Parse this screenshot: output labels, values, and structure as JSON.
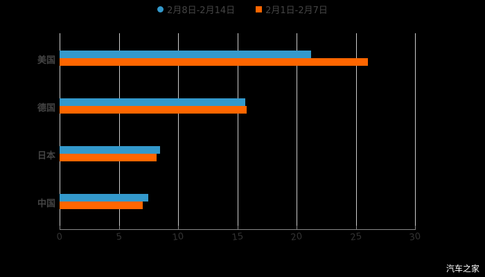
{
  "chart_data": {
    "type": "bar",
    "orientation": "horizontal",
    "title": "",
    "categories": [
      "美国",
      "德国",
      "日本",
      "中国"
    ],
    "series": [
      {
        "name": "2月8日-2月14日",
        "color": "#3399CC",
        "marker": "circle",
        "values": [
          21.2,
          15.7,
          8.5,
          7.5
        ]
      },
      {
        "name": "2月1日-2月7日",
        "color": "#FF6600",
        "marker": "square",
        "values": [
          26.0,
          15.8,
          8.2,
          7.0
        ]
      }
    ],
    "xlabel": "",
    "ylabel": "",
    "xlim": [
      0,
      30
    ],
    "xticks": [
      "0",
      "5",
      "10",
      "15",
      "20",
      "25",
      "30"
    ],
    "grid": true,
    "legend_position": "top"
  },
  "legend": {
    "item1": "2月8日-2月14日",
    "item2": "2月1日-2月7日"
  },
  "watermark": "汽车之家"
}
